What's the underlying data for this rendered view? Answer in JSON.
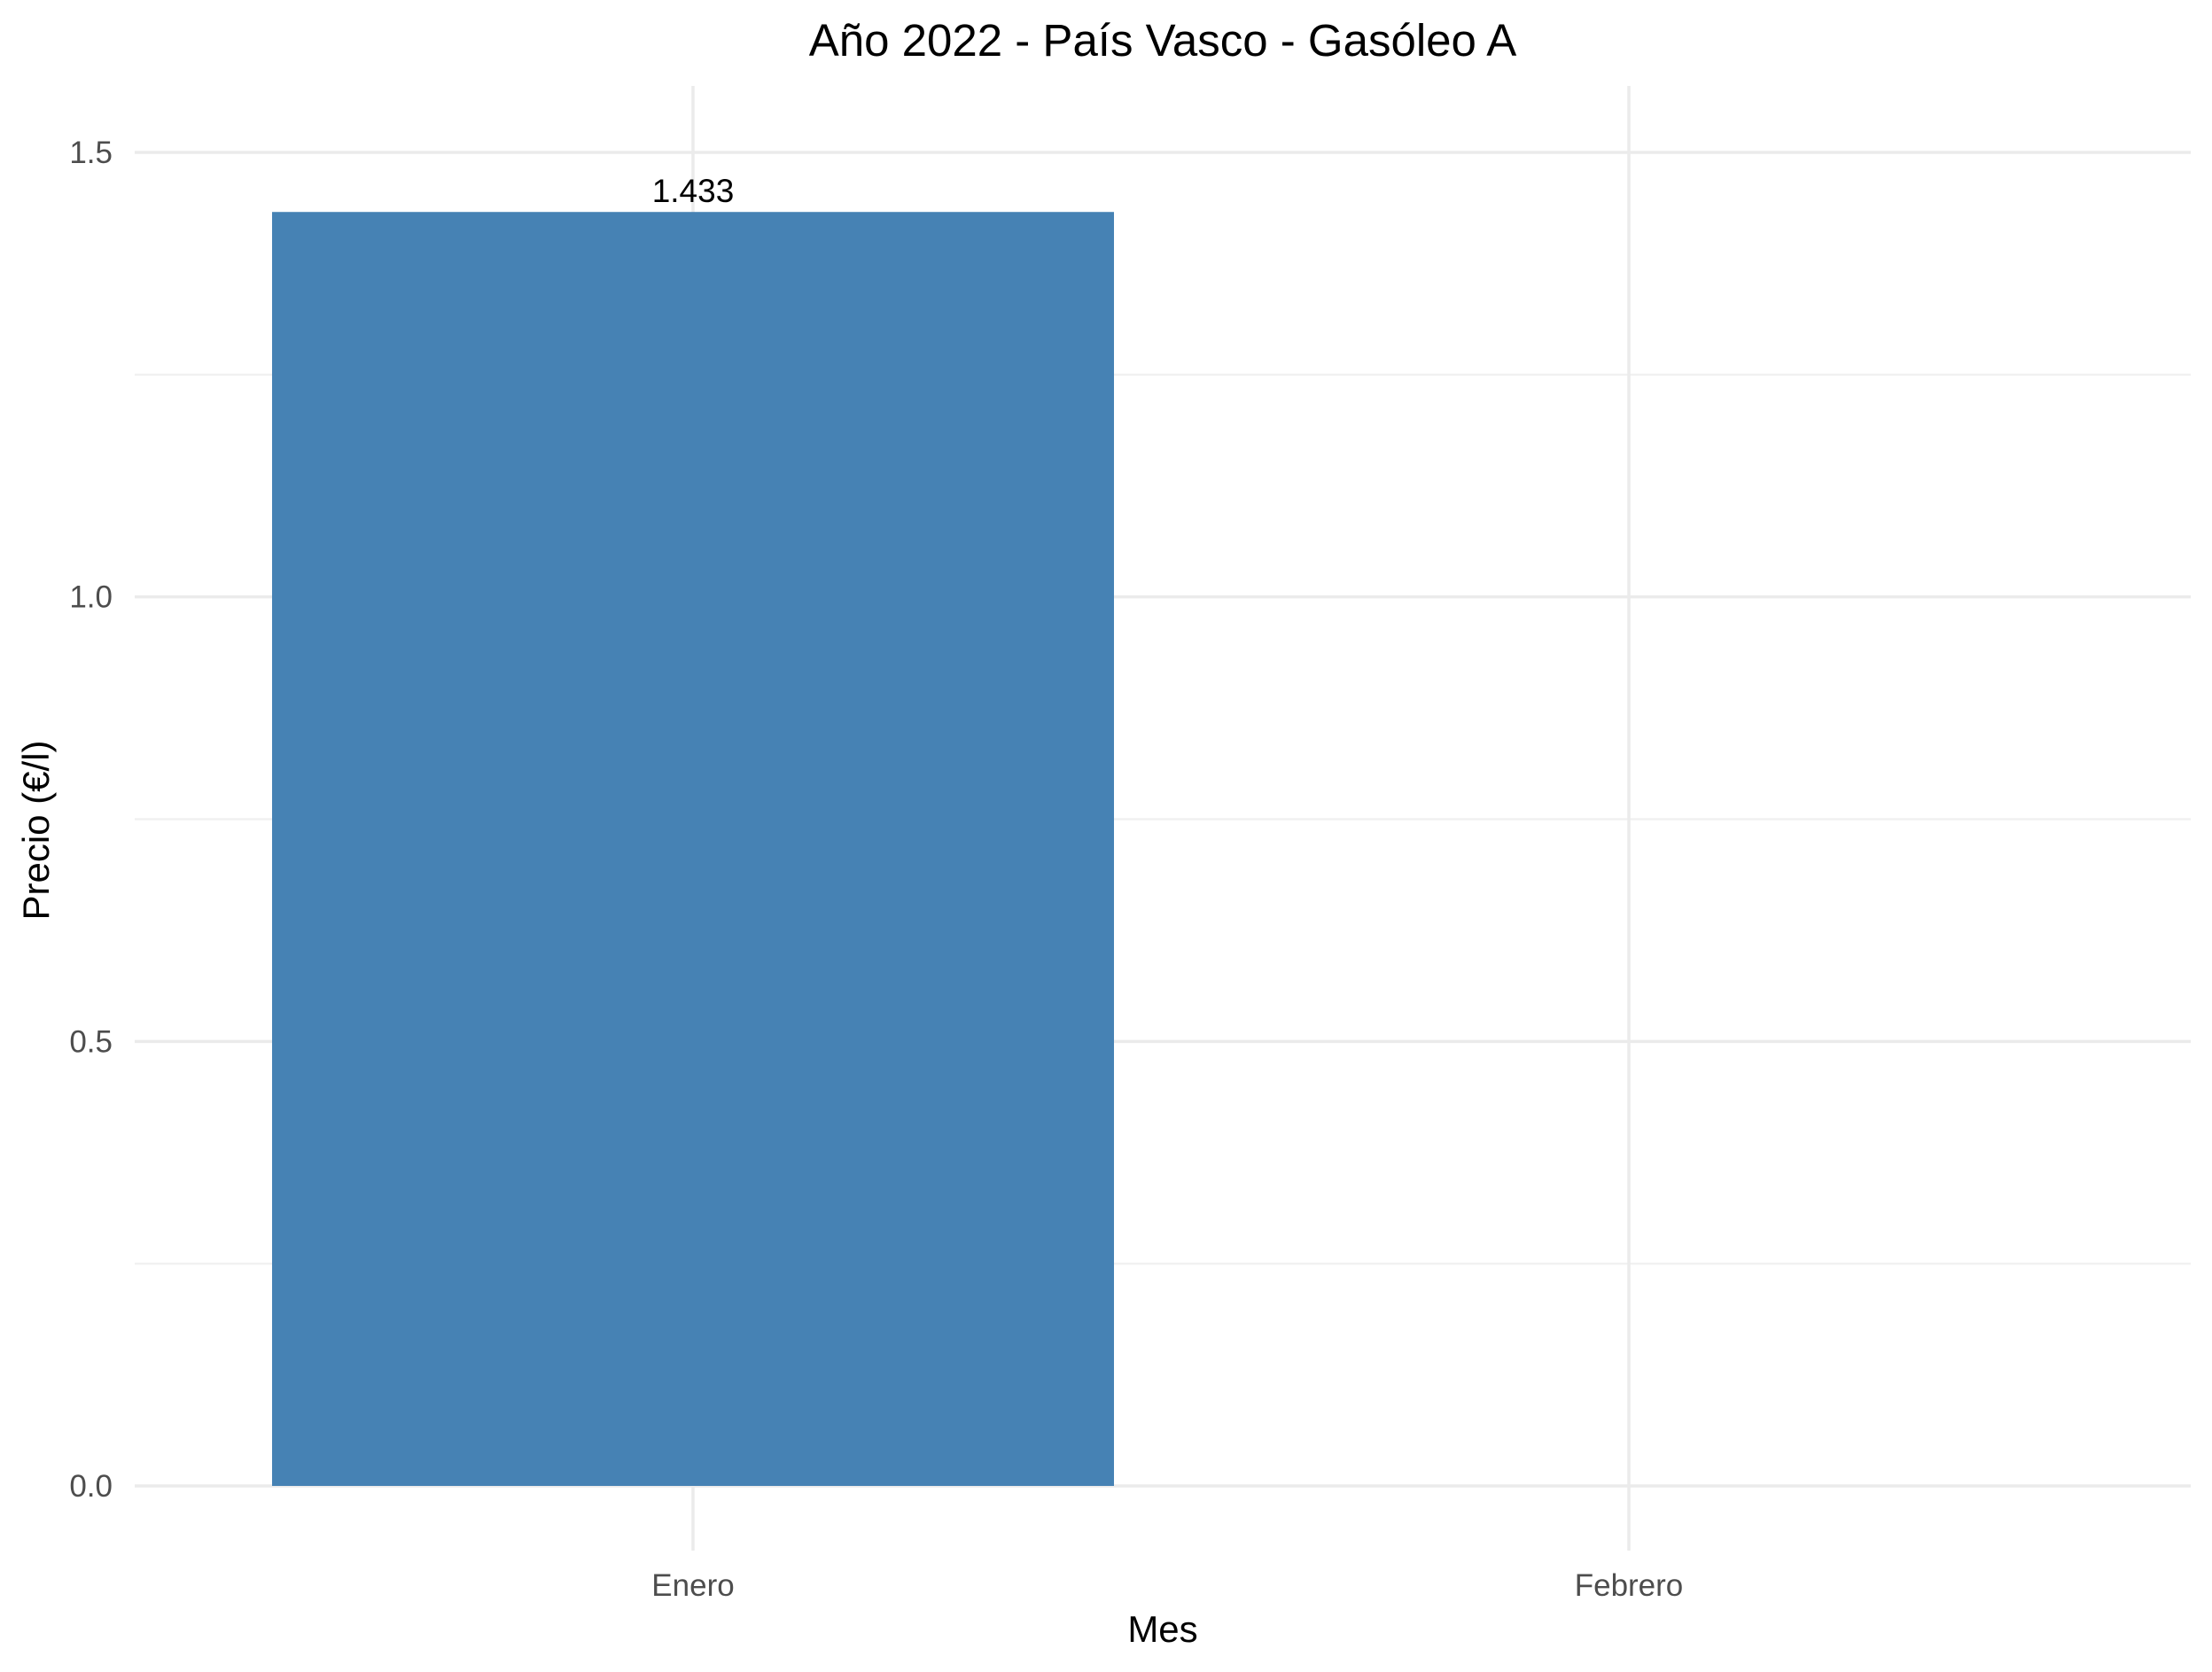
{
  "chart_data": {
    "type": "bar",
    "title": "Año 2022 - País Vasco - Gasóleo A",
    "xlabel": "Mes",
    "ylabel": "Precio (€/l)",
    "categories": [
      "Enero",
      "Febrero"
    ],
    "values": [
      1.433,
      null
    ],
    "data_labels": [
      "1.433",
      ""
    ],
    "ylim": [
      0,
      1.5
    ],
    "y_ticks": [
      0.0,
      0.5,
      1.0,
      1.5
    ],
    "y_tick_labels": [
      "0.0",
      "0.5",
      "1.0",
      "1.5"
    ],
    "grid": true,
    "legend": "none",
    "colors": {
      "bar": "#4682b4"
    }
  }
}
